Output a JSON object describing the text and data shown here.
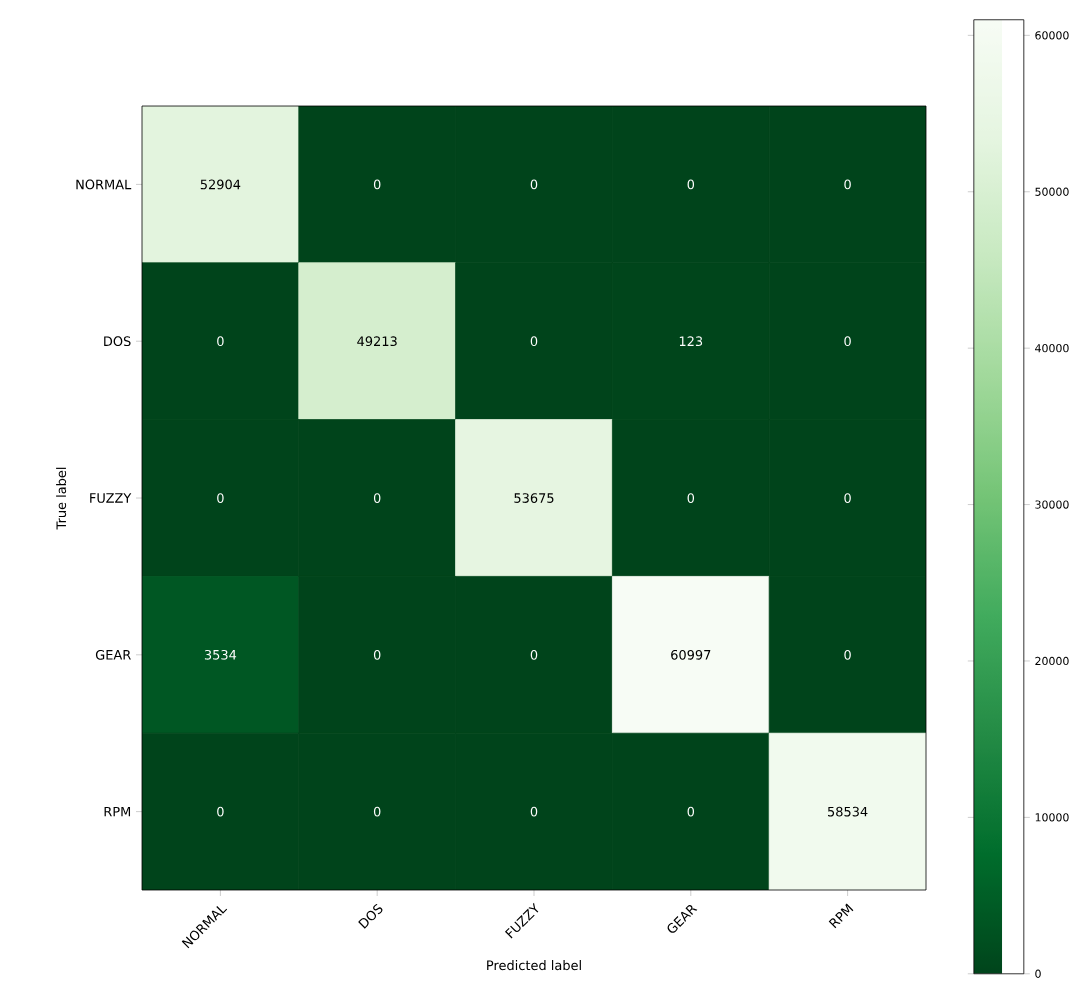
{
  "chart_data": {
    "type": "heatmap",
    "xlabel": "Predicted label",
    "ylabel": "True label",
    "categories": [
      "NORMAL",
      "DOS",
      "FUZZY",
      "GEAR",
      "RPM"
    ],
    "y_categories": [
      "NORMAL",
      "DOS",
      "FUZZY",
      "GEAR",
      "RPM"
    ],
    "cells": [
      [
        52904,
        0,
        0,
        0,
        0
      ],
      [
        0,
        49213,
        0,
        123,
        0
      ],
      [
        0,
        0,
        53675,
        0,
        0
      ],
      [
        3534,
        0,
        0,
        60997,
        0
      ],
      [
        0,
        0,
        0,
        0,
        58534
      ]
    ],
    "data_labels": true,
    "clim": [
      0,
      60997
    ],
    "cticks": [
      0,
      10000,
      20000,
      30000,
      40000,
      50000,
      60000
    ]
  }
}
